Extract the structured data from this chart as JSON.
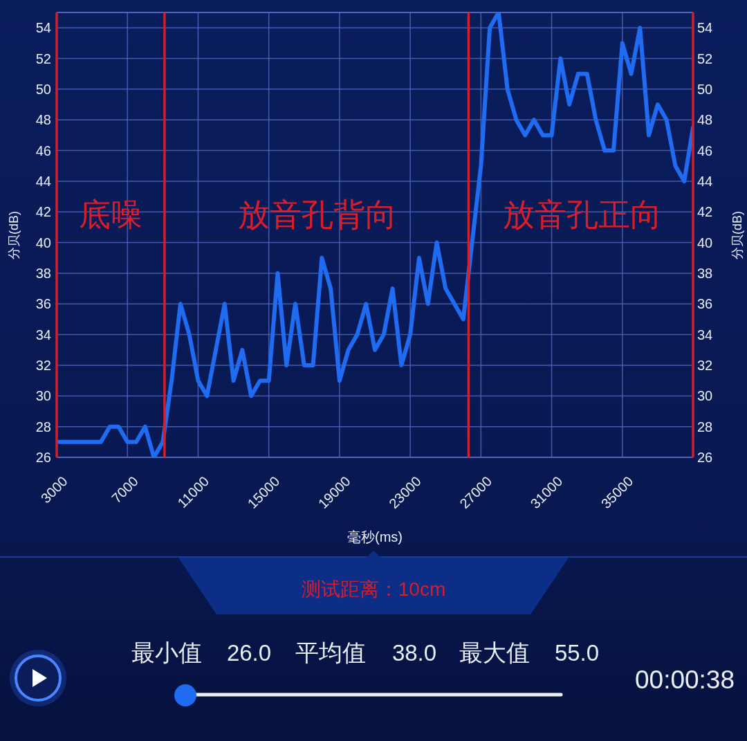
{
  "chart_data": {
    "type": "line",
    "xlabel": "毫秒(ms)",
    "ylabel": "分贝(dB)",
    "y2label": "分贝(dB)",
    "x": [
      3000,
      3500,
      4000,
      4500,
      5000,
      5500,
      6000,
      6500,
      7000,
      7500,
      8000,
      8500,
      9000,
      9500,
      10000,
      10500,
      11000,
      11500,
      12000,
      12500,
      13000,
      13500,
      14000,
      14500,
      15000,
      15500,
      16000,
      16500,
      17000,
      17500,
      18000,
      18500,
      19000,
      19500,
      20000,
      20500,
      21000,
      21500,
      22000,
      22500,
      23000,
      23500,
      24000,
      24500,
      25000,
      25500,
      26000,
      26500,
      27000,
      27500,
      28000,
      28500,
      29000,
      29500,
      30000,
      30500,
      31000,
      31500,
      32000,
      32500,
      33000,
      33500,
      34000,
      34500,
      35000,
      35500,
      36000,
      36500,
      37000,
      37500,
      38000,
      38500,
      39000
    ],
    "series": [
      {
        "color": "#1f6bf2",
        "values": [
          27,
          27,
          27,
          27,
          27,
          27,
          28,
          28,
          27,
          27,
          28,
          26,
          27,
          31,
          36,
          34,
          31,
          30,
          33,
          36,
          31,
          33,
          30,
          31,
          31,
          38,
          32,
          36,
          32,
          32,
          39,
          37,
          31,
          33,
          34,
          36,
          33,
          34,
          37,
          32,
          34,
          39,
          36,
          40,
          37,
          36,
          35,
          40,
          45,
          54,
          55,
          50,
          48,
          47,
          48,
          47,
          47,
          52,
          49,
          51,
          51,
          48,
          46,
          46,
          53,
          51,
          54,
          47,
          49,
          48,
          45,
          44,
          47.5
        ]
      }
    ],
    "xlim": [
      3000,
      39000
    ],
    "xticks": [
      3000,
      7000,
      11000,
      15000,
      19000,
      23000,
      27000,
      31000,
      35000
    ],
    "ylim": [
      26,
      55
    ],
    "yticks": [
      26,
      28,
      30,
      32,
      34,
      36,
      38,
      40,
      42,
      44,
      46,
      48,
      50,
      52,
      54
    ],
    "y2lim": [
      26,
      55
    ],
    "y2ticks": [
      26,
      28,
      30,
      32,
      34,
      36,
      38,
      40,
      42,
      44,
      46,
      48,
      50,
      52,
      54
    ],
    "grid": true,
    "line_style": "solid",
    "ref_lines": [
      {
        "axis": "x",
        "value": 3000,
        "color": "#d0202c"
      },
      {
        "axis": "x",
        "value": 9100,
        "color": "#d0202c"
      },
      {
        "axis": "x",
        "value": 26300,
        "color": "#d0202c"
      },
      {
        "axis": "x",
        "value": 39000,
        "color": "#d0202c"
      }
    ],
    "annotations": [
      "底噪",
      "放音孔背向",
      "放音孔正向",
      "测试距离：10cm",
      "最小值",
      "26.0",
      "平均值",
      "38.0",
      "最大值",
      "55.0",
      "00:00:38"
    ]
  }
}
